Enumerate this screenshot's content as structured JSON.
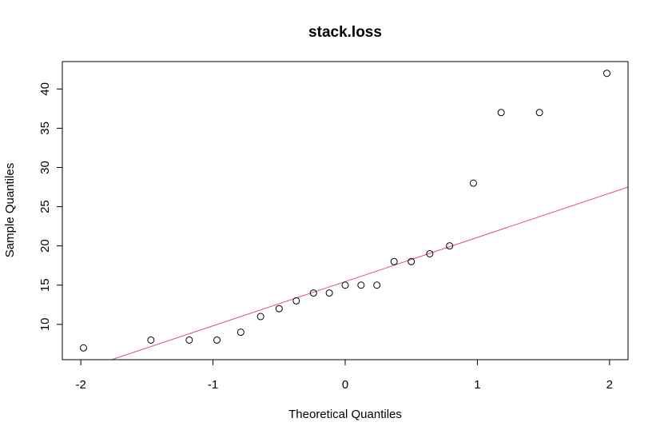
{
  "chart_data": {
    "type": "scatter",
    "title": "stack.loss",
    "xlabel": "Theoretical Quantiles",
    "ylabel": "Sample Quantiles",
    "xlim": [
      -2.14,
      2.14
    ],
    "ylim": [
      5.5,
      43.5
    ],
    "xticks": [
      -2,
      -1,
      0,
      1,
      2
    ],
    "xtick_labels": [
      "-2",
      "-1",
      "0",
      "1",
      "2"
    ],
    "yticks": [
      10,
      15,
      20,
      25,
      30,
      35,
      40
    ],
    "ytick_labels": [
      "10",
      "15",
      "20",
      "25",
      "30",
      "35",
      "40"
    ],
    "grid": false,
    "legend": "none",
    "points": [
      {
        "x": -1.98,
        "y": 7
      },
      {
        "x": -1.47,
        "y": 8
      },
      {
        "x": -1.18,
        "y": 8
      },
      {
        "x": -0.97,
        "y": 8
      },
      {
        "x": -0.79,
        "y": 9
      },
      {
        "x": -0.64,
        "y": 11
      },
      {
        "x": -0.5,
        "y": 12
      },
      {
        "x": -0.37,
        "y": 13
      },
      {
        "x": -0.24,
        "y": 14
      },
      {
        "x": -0.12,
        "y": 14
      },
      {
        "x": 0.0,
        "y": 15
      },
      {
        "x": 0.12,
        "y": 15
      },
      {
        "x": 0.24,
        "y": 15
      },
      {
        "x": 0.37,
        "y": 18
      },
      {
        "x": 0.5,
        "y": 18
      },
      {
        "x": 0.64,
        "y": 19
      },
      {
        "x": 0.79,
        "y": 20
      },
      {
        "x": 0.97,
        "y": 28
      },
      {
        "x": 1.18,
        "y": 37
      },
      {
        "x": 1.47,
        "y": 37
      },
      {
        "x": 1.98,
        "y": 42
      }
    ],
    "reference_line": {
      "intercept": 15.45,
      "slope": 5.63,
      "color": "#DF536B"
    },
    "point_color": "#000000"
  }
}
